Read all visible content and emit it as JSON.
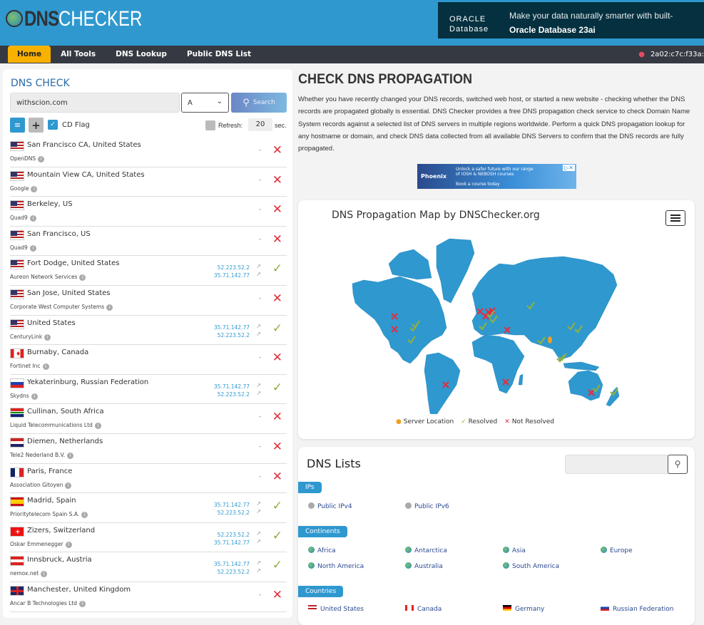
{
  "header": {
    "logo": {
      "part1": "DNS",
      "part2": "CHECKER"
    },
    "ad": {
      "brand_line1": "ORACLE",
      "brand_line2": "Database",
      "message": "Make your data naturally smarter with built-",
      "subline": "Oracle Database 23ai"
    }
  },
  "nav": {
    "items": [
      {
        "label": "Home",
        "active": true
      },
      {
        "label": "All Tools"
      },
      {
        "label": "DNS Lookup"
      },
      {
        "label": "Public DNS List"
      }
    ],
    "ip": "2a02:c7c:f33a:"
  },
  "dns_check": {
    "title": "DNS CHECK",
    "domain": "withscion.com",
    "record_type": "A",
    "search_label": "Search",
    "cd_flag_label": "CD Flag",
    "cd_flag_checked": true,
    "refresh_label": "Refresh:",
    "refresh_value": "20",
    "refresh_unit": "sec.",
    "refresh_checked": false
  },
  "results": [
    {
      "location": "San Francisco CA, United States",
      "provider": "OpenDNS",
      "flag": "us",
      "ips": [],
      "resolved": false
    },
    {
      "location": "Mountain View CA, United States",
      "provider": "Google",
      "flag": "us",
      "ips": [],
      "resolved": false
    },
    {
      "location": "Berkeley, US",
      "provider": "Quad9",
      "flag": "us",
      "ips": [],
      "resolved": false
    },
    {
      "location": "San Francisco, US",
      "provider": "Quad9",
      "flag": "us",
      "ips": [],
      "resolved": false
    },
    {
      "location": "Fort Dodge, United States",
      "provider": "Aureon Network Services",
      "flag": "us",
      "ips": [
        "52.223.52.2",
        "35.71.142.77"
      ],
      "resolved": true
    },
    {
      "location": "San Jose, United States",
      "provider": "Corporate West Computer Systems",
      "flag": "us",
      "ips": [],
      "resolved": false
    },
    {
      "location": "United States",
      "provider": "CenturyLink",
      "flag": "us",
      "ips": [
        "35.71.142.77",
        "52.223.52.2"
      ],
      "resolved": true
    },
    {
      "location": "Burnaby, Canada",
      "provider": "Fortinet Inc",
      "flag": "ca",
      "ips": [],
      "resolved": false
    },
    {
      "location": "Yekaterinburg, Russian Federation",
      "provider": "Skydns",
      "flag": "ru",
      "ips": [
        "35.71.142.77",
        "52.223.52.2"
      ],
      "resolved": true
    },
    {
      "location": "Cullinan, South Africa",
      "provider": "Liquid Telecommunications Ltd",
      "flag": "za",
      "ips": [],
      "resolved": false
    },
    {
      "location": "Diemen, Netherlands",
      "provider": "Tele2 Nederland B.V.",
      "flag": "nl",
      "ips": [],
      "resolved": false
    },
    {
      "location": "Paris, France",
      "provider": "Association Gitoyen",
      "flag": "fr",
      "ips": [],
      "resolved": false
    },
    {
      "location": "Madrid, Spain",
      "provider": "Prioritytelecom Spain S.A.",
      "flag": "es",
      "ips": [
        "35.71.142.77",
        "52.223.52.2"
      ],
      "resolved": true
    },
    {
      "location": "Zizers, Switzerland",
      "provider": "Oskar Emmenegger",
      "flag": "ch",
      "ips": [
        "52.223.52.2",
        "35.71.142.77"
      ],
      "resolved": true
    },
    {
      "location": "Innsbruck, Austria",
      "provider": "nemox.net",
      "flag": "at",
      "ips": [
        "35.71.142.77",
        "52.223.52.2"
      ],
      "resolved": true
    },
    {
      "location": "Manchester, United Kingdom",
      "provider": "Ancar B Technologies Ltd",
      "flag": "gb",
      "ips": [],
      "resolved": false
    }
  ],
  "empty_ip": "-",
  "main": {
    "title": "CHECK DNS PROPAGATION",
    "intro": "Whether you have recently changed your DNS records, switched web host, or started a new website - checking whether the DNS records are propagated globally is essential. DNS Checker provides a free DNS propagation check service to check Domain Name System records against a selected list of DNS servers in multiple regions worldwide. Perform a quick DNS propagation lookup for any hostname or domain, and check DNS data collected from all available DNS Servers to confirm that the DNS records are fully propagated.",
    "ad": {
      "brand": "Phoenix",
      "text": "Unlock a safer future with our range of IOSH & NEBOSH courses",
      "cta": "Book a course today"
    }
  },
  "map": {
    "title": "DNS Propagation Map by DNSChecker.org",
    "legend": {
      "server": "Server Location",
      "resolved": "Resolved",
      "not_resolved": "Not Resolved"
    },
    "colors": {
      "land": "#2f98cf",
      "resolved": "#8cb043",
      "not_resolved": "#e0303f",
      "server": "#f0a020"
    }
  },
  "dns_lists": {
    "title": "DNS Lists",
    "search_placeholder": "",
    "ips": {
      "label": "IPs",
      "items": [
        "Public IPv4",
        "Public IPv6"
      ]
    },
    "continents": {
      "label": "Continents",
      "items": [
        "Africa",
        "Antarctica",
        "Asia",
        "Europe",
        "North America",
        "Australia",
        "South America"
      ]
    },
    "countries": {
      "label": "Countries",
      "items": [
        "United States",
        "Canada",
        "Germany",
        "Russian Federation"
      ]
    }
  }
}
